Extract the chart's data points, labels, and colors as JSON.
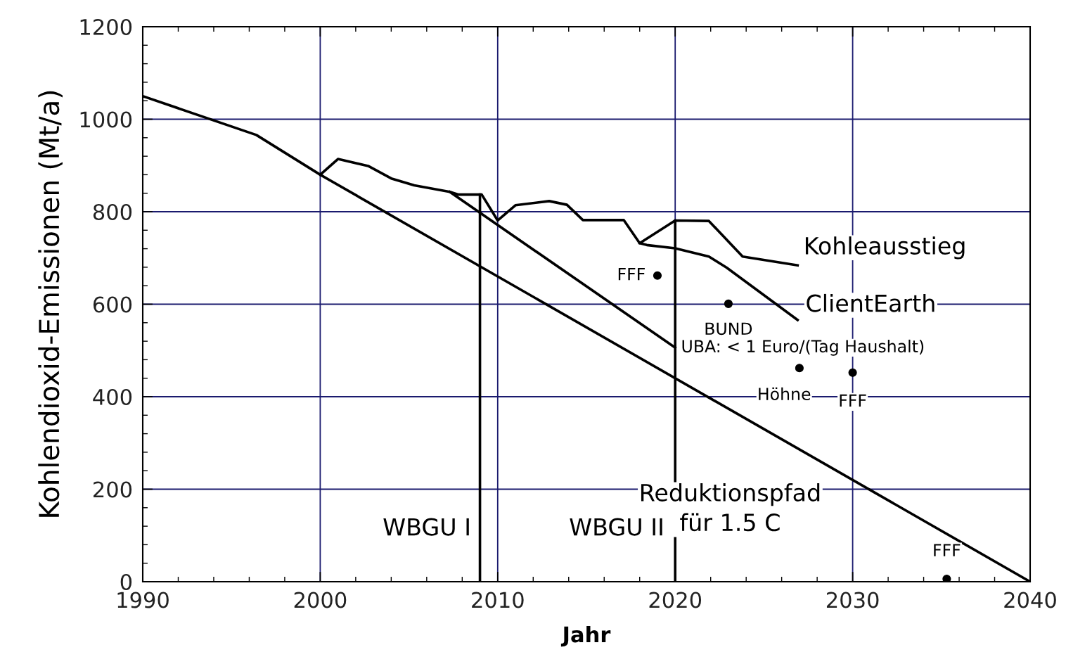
{
  "chart_data": {
    "type": "line",
    "xlabel": "Jahr",
    "ylabel": "Kohlendioxid-Emissionen (Mt/a)",
    "xlim": [
      1990,
      2040
    ],
    "xticks": [
      1990,
      2000,
      2010,
      2020,
      2030,
      2040
    ],
    "ylim": [
      0,
      1200
    ],
    "yticks": [
      0,
      200,
      400,
      600,
      800,
      1000,
      1200
    ],
    "grid": true,
    "legend": false,
    "marker": "none",
    "line_style": "solid",
    "series": [
      {
        "color": "#000000",
        "x": [
          1990,
          1996.4,
          2000,
          2040
        ],
        "values": [
          1050,
          966,
          880,
          0
        ]
      },
      {
        "color": "#000000",
        "x": [
          2000,
          2001,
          2002.7,
          2004,
          2005.3,
          2007.3,
          2007.8,
          2009.1,
          2010,
          2011,
          2012.9,
          2013.9,
          2014.8,
          2017.1,
          2018,
          2020,
          2021.9,
          2023.8,
          2026.9
        ],
        "values": [
          880,
          914,
          899,
          872,
          857,
          843,
          837,
          837,
          781,
          814,
          823,
          815,
          782,
          782,
          732,
          781,
          780,
          703,
          684
        ]
      },
      {
        "color": "#000000",
        "x": [
          2018,
          2018.4,
          2020,
          2021.9,
          2022.9,
          2026.9
        ],
        "values": [
          732,
          728,
          721,
          703,
          679,
          566
        ]
      },
      {
        "color": "#000000",
        "x": [
          2007.3,
          2020
        ],
        "values": [
          843,
          506
        ]
      },
      {
        "color": "#000000",
        "x": [
          2009,
          2009
        ],
        "values": [
          0,
          837
        ]
      },
      {
        "color": "#000000",
        "x": [
          2020,
          2020
        ],
        "values": [
          0,
          781
        ]
      },
      {
        "type": "scatter",
        "marker": "circle",
        "color": "#000000",
        "x": [
          2019,
          2023,
          2027,
          2030,
          2035.3
        ],
        "values": [
          662,
          601,
          462,
          452,
          6
        ]
      }
    ],
    "annotations": [
      {
        "text": "Kohleausstieg",
        "x": 2026.9,
        "y": 684
      },
      {
        "text": "ClientEarth",
        "x": 2026.9,
        "y": 566
      },
      {
        "text": "UBA: < 1 Euro/(Tag Haushalt)",
        "x": 2020,
        "y": 506
      },
      "Reduktionspfad\nfür 1.5 C",
      {
        "text": "WBGU I",
        "x": 2009,
        "y": 0
      },
      {
        "text": "WBGU II",
        "x": 2020,
        "y": 0
      },
      {
        "text": "FFF",
        "x": 2019,
        "y": 662
      },
      {
        "text": "BUND",
        "x": 2023,
        "y": 601
      },
      {
        "text": "Höhne",
        "x": 2027,
        "y": 462
      },
      {
        "text": "FFF",
        "x": 2030,
        "y": 452
      },
      {
        "text": "FFF",
        "x": 2035.3,
        "y": 6
      }
    ]
  }
}
